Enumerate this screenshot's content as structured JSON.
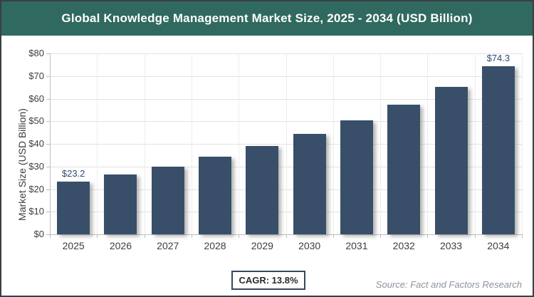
{
  "header": {
    "title": "Global Knowledge Management Market Size, 2025 - 2034 (USD Billion)"
  },
  "chart_data": {
    "type": "bar",
    "title": "Global Knowledge Management Market Size, 2025 - 2034 (USD Billion)",
    "xlabel": "",
    "ylabel": "Market Size (USD Billion)",
    "categories": [
      "2025",
      "2026",
      "2027",
      "2028",
      "2029",
      "2030",
      "2031",
      "2032",
      "2033",
      "2034"
    ],
    "values": [
      23.2,
      26.4,
      30.0,
      34.2,
      38.9,
      44.3,
      50.4,
      57.4,
      65.3,
      74.3
    ],
    "ylim": [
      0,
      80
    ],
    "ytick_step": 10,
    "yticks": [
      "$0",
      "$10",
      "$20",
      "$30",
      "$40",
      "$50",
      "$60",
      "$70",
      "$80"
    ],
    "grid": true,
    "legend": false,
    "value_labels": [
      {
        "category": "2025",
        "text": "$23.2"
      },
      {
        "category": "2034",
        "text": "$74.3"
      }
    ]
  },
  "footer": {
    "cagr_label": "CAGR: 13.8%",
    "source": "Source: Fact and Factors Research"
  },
  "colors": {
    "header_bg": "#30695f",
    "bar": "#394f69",
    "value_label": "#2e4a6b",
    "frame_border": "#3a3f44",
    "grid": "#e3e3e3",
    "grid_v": "#ededed",
    "axis": "#bfbfbf",
    "cagr_border": "#33495e",
    "source_color": "#8c949c"
  }
}
